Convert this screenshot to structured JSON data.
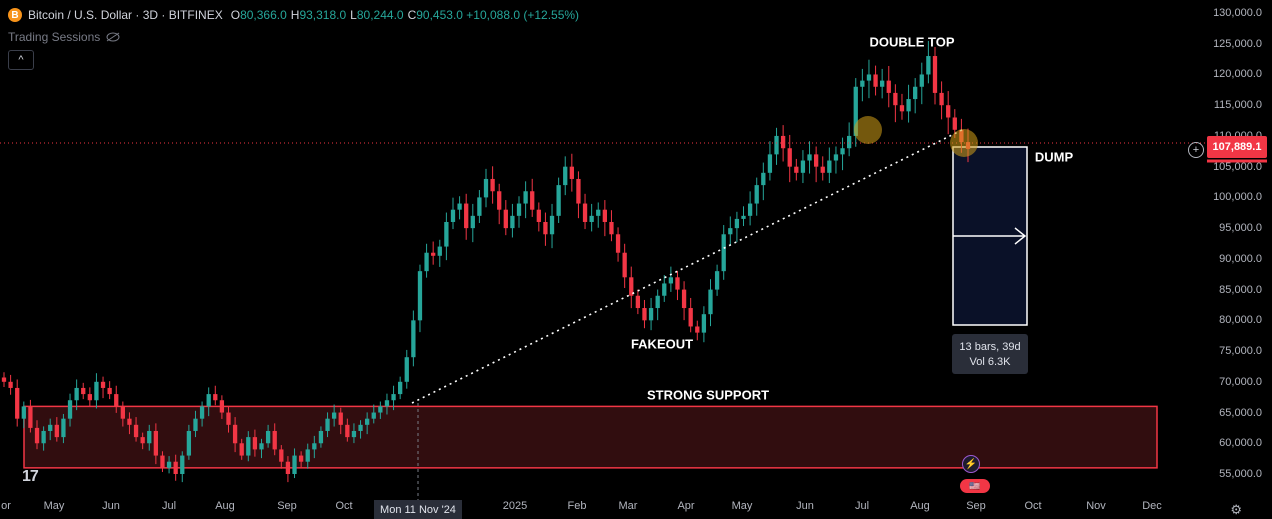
{
  "header": {
    "coin_letter": "B",
    "symbol": "Bitcoin / U.S. Dollar · 3D · BITFINEX",
    "o_label": "O",
    "o_value": "80,366.0",
    "h_label": "H",
    "h_value": "93,318.0",
    "l_label": "L",
    "l_value": "80,244.0",
    "c_label": "C",
    "c_value": "90,453.0 +10,088.0 (+12.55%)",
    "sessions": "Trading Sessions",
    "collapse": "^"
  },
  "price_tag": "107,889.1",
  "plus_btn": "+",
  "crosshair_date": "Mon 11 Nov '24",
  "measure": {
    "line1": "13 bars, 39d",
    "line2": "Vol 6.3K"
  },
  "logo": "17",
  "event_icon": "⚡",
  "flag_icon": "🇺🇸",
  "settings_icon": "⚙",
  "colors": {
    "up": "#26a69a",
    "down": "#f23645",
    "support_fill": "#3a0f12",
    "support_border": "#f23645",
    "dump_box": "#0a1128"
  },
  "chart_data": {
    "type": "candlestick",
    "ylim": [
      52000,
      131000
    ],
    "yticks": [
      "55,000.0",
      "60,000.0",
      "65,000.0",
      "70,000.0",
      "75,000.0",
      "80,000.0",
      "85,000.0",
      "90,000.0",
      "95,000.0",
      "100,000.0",
      "105,000.0",
      "110,000.0",
      "115,000.0",
      "120,000.0",
      "125,000.0",
      "130,000.0"
    ],
    "xticks": [
      "Apr",
      "May",
      "Jun",
      "Jul",
      "Aug",
      "Sep",
      "Oct",
      "Nov",
      "2025",
      "Feb",
      "Mar",
      "Apr",
      "May",
      "Jun",
      "Jul",
      "Aug",
      "Sep",
      "Oct",
      "Nov",
      "Dec"
    ],
    "x_tick_labels": [
      "or",
      "May",
      "Jun",
      "Jul",
      "Aug",
      "Sep",
      "Oct",
      "",
      "2025",
      "Feb",
      "Mar",
      "Apr",
      "May",
      "Jun",
      "Jul",
      "Aug",
      "Sep",
      "Oct",
      "Nov",
      "Dec"
    ],
    "current_price": 107889.1,
    "annotations": [
      "DOUBLE TOP",
      "DUMP",
      "FAKEOUT",
      "STRONG SUPPORT"
    ],
    "support_zone": [
      56000,
      66000
    ],
    "closes": [
      70000,
      69000,
      64000,
      66000,
      62500,
      60000,
      62000,
      63000,
      61000,
      64000,
      67000,
      69000,
      68000,
      67000,
      70000,
      69000,
      68000,
      66000,
      64000,
      63000,
      61000,
      60000,
      62000,
      58000,
      56000,
      57000,
      55000,
      58000,
      62000,
      64000,
      66000,
      68000,
      67000,
      65000,
      63000,
      60000,
      58000,
      61000,
      59000,
      60000,
      62000,
      59000,
      57000,
      55000,
      58000,
      57000,
      59000,
      60000,
      62000,
      64000,
      65000,
      63000,
      61000,
      62000,
      63000,
      64000,
      65000,
      66000,
      67000,
      68000,
      70000,
      74000,
      80000,
      88000,
      91000,
      90500,
      92000,
      96000,
      98000,
      99000,
      95000,
      97000,
      100000,
      103000,
      101000,
      98000,
      95000,
      97000,
      99000,
      101000,
      98000,
      96000,
      94000,
      97000,
      102000,
      105000,
      103000,
      99000,
      96000,
      97000,
      98000,
      96000,
      94000,
      91000,
      87000,
      84000,
      82000,
      80000,
      82000,
      84000,
      86000,
      87000,
      85000,
      82000,
      79000,
      78000,
      81000,
      85000,
      88000,
      94000,
      95000,
      96500,
      97000,
      99000,
      102000,
      104000,
      107000,
      110000,
      108000,
      105000,
      104000,
      106000,
      107000,
      105000,
      104000,
      106000,
      107000,
      108000,
      110000,
      118000,
      119000,
      120000,
      118000,
      119000,
      117000,
      115000,
      114000,
      116000,
      118000,
      120000,
      123000,
      117000,
      115000,
      113000,
      111000,
      109000,
      107889
    ]
  }
}
